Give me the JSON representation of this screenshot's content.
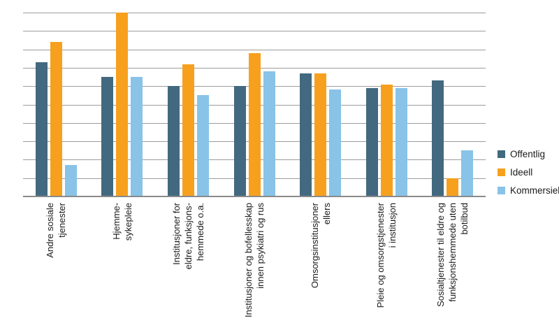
{
  "chart_data": {
    "type": "bar",
    "title": "",
    "xlabel": "",
    "ylabel": "",
    "ylim": [
      0,
      100
    ],
    "yticks": [
      0,
      10,
      20,
      30,
      40,
      50,
      60,
      70,
      80,
      90,
      100
    ],
    "grid": true,
    "gridline_color": "#9c9c9c",
    "baseline_color": "#8a8a8a",
    "text_color": "#1a1a1a",
    "value_labels": true,
    "legend_position": "right",
    "categories": [
      "Andre sosiale tjenester",
      "Hjemmesykepleie",
      "Institusjoner for eldre, funksjonshemmede o.a.",
      "Institusjoner og bofellesskap innen psykiatri og rus",
      "Omsorgsinstitusjoner ellers",
      "Pleie og omsorgstjenester i institusjon",
      "Sosialtjenester til eldre og funksjonshemmede uten botilbud"
    ],
    "category_lines": [
      [
        "Andre sosiale",
        "tjenester"
      ],
      [
        "Hjemme-",
        "sykepleie"
      ],
      [
        "Institusjoner for",
        "eldre, funksjons-",
        "hemmede o.a."
      ],
      [
        "Institusjoner og bofellesskap",
        "innen psykiatri og rus"
      ],
      [
        "Omsorgsinstitusjoner",
        "ellers"
      ],
      [
        "Pleie og omsorgstjenester",
        "i institusjon"
      ],
      [
        "Sosialtjenester til eldre og",
        "funksjonshemmede uten",
        "botilbud"
      ]
    ],
    "series": [
      {
        "name": "Offentlig",
        "color": "#42697f",
        "values": [
          73,
          65,
          60,
          60,
          67,
          59,
          63
        ]
      },
      {
        "name": "Ideell",
        "color": "#f7a01e",
        "values": [
          84,
          100,
          72,
          78,
          67,
          61,
          10
        ]
      },
      {
        "name": "Kommersiell",
        "color": "#89c3e7",
        "values": [
          17,
          65,
          55,
          68,
          58,
          59,
          25
        ]
      }
    ]
  }
}
